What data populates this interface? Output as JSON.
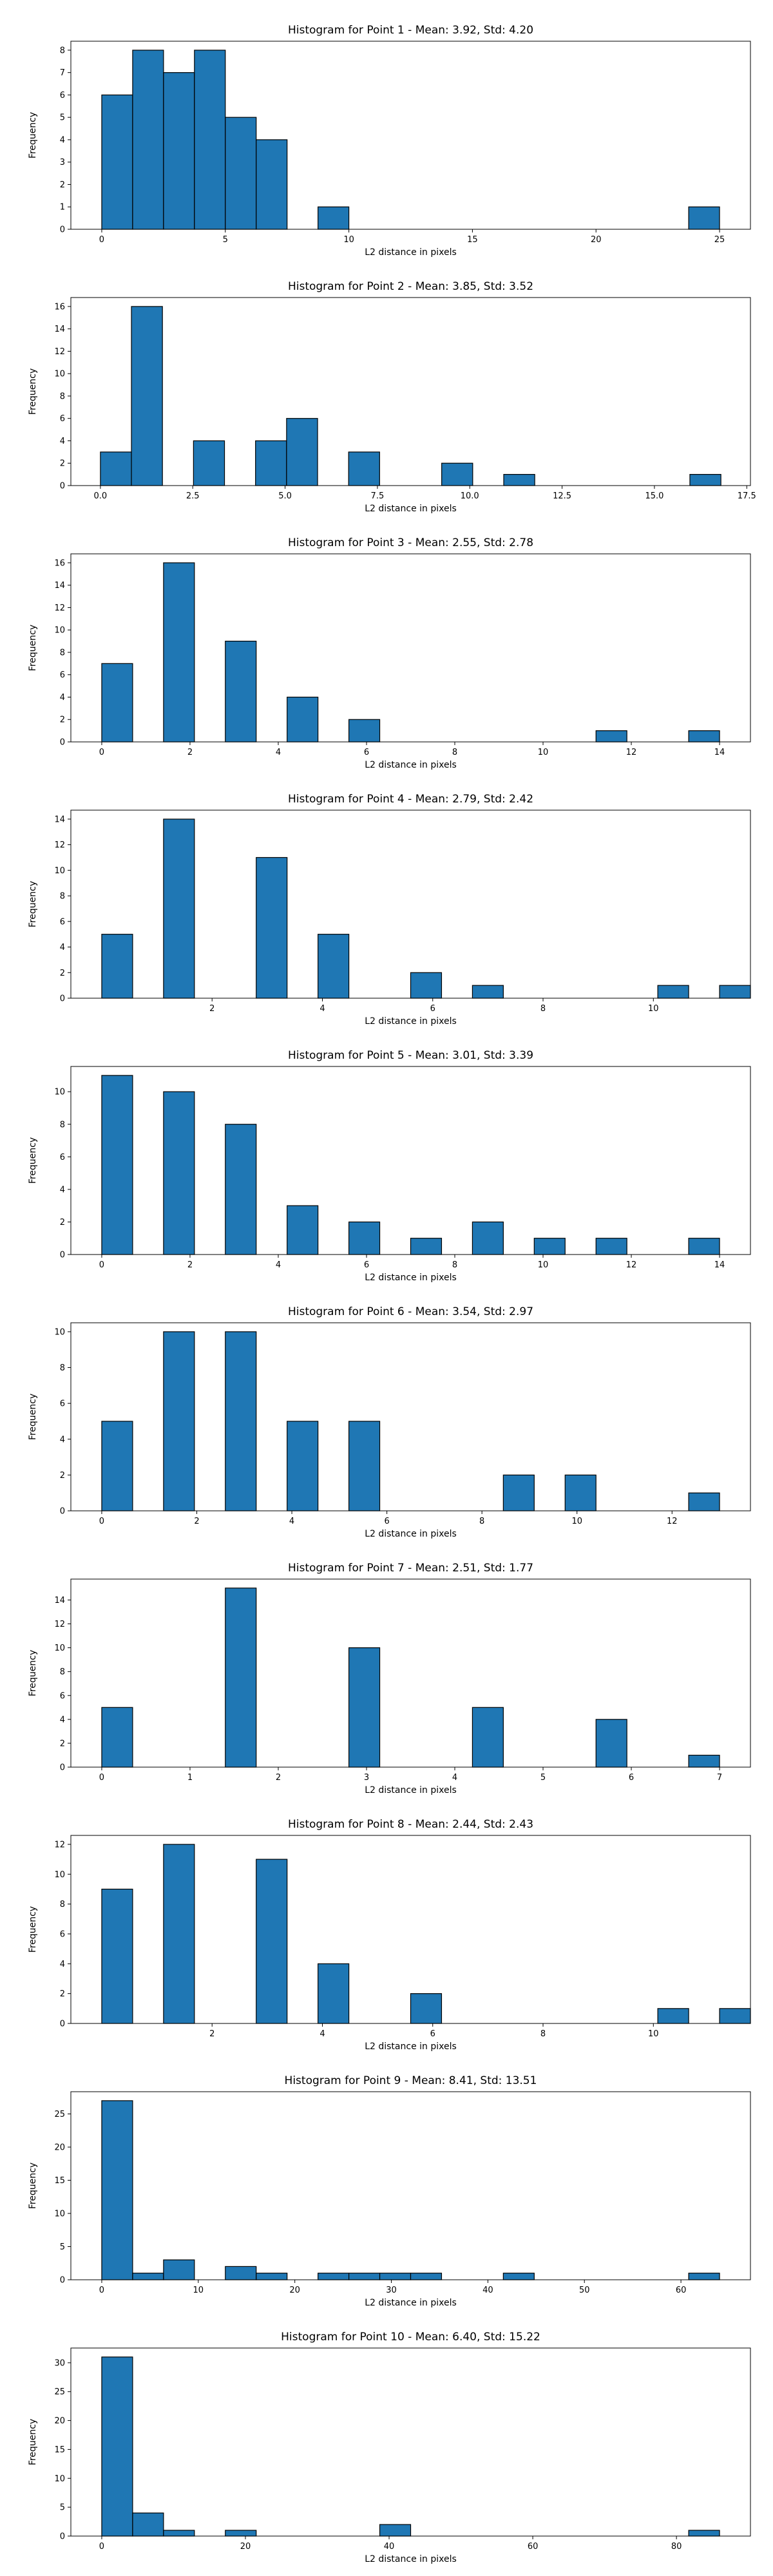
{
  "chart_data": [
    {
      "type": "bar",
      "title": "Histogram for Point 1 - Mean: 3.92, Std: 4.20",
      "xlabel": "L2 distance in pixels",
      "ylabel": "Frequency",
      "xlim": [
        -1.25,
        26.25
      ],
      "ylim": [
        0,
        8.4
      ],
      "xticks": [
        0,
        5,
        10,
        15,
        20,
        25
      ],
      "xtick_labels": [
        "0",
        "5",
        "10",
        "15",
        "20",
        "25"
      ],
      "yticks": [
        0,
        1,
        2,
        3,
        4,
        5,
        6,
        7,
        8
      ],
      "ytick_labels": [
        "0",
        "1",
        "2",
        "3",
        "4",
        "5",
        "6",
        "7",
        "8"
      ],
      "bin_width": 1.25,
      "bins": [
        {
          "x": 0.0,
          "count": 6
        },
        {
          "x": 1.25,
          "count": 8
        },
        {
          "x": 2.5,
          "count": 7
        },
        {
          "x": 3.75,
          "count": 8
        },
        {
          "x": 5.0,
          "count": 5
        },
        {
          "x": 6.25,
          "count": 4
        },
        {
          "x": 8.75,
          "count": 1
        },
        {
          "x": 23.75,
          "count": 1
        }
      ]
    },
    {
      "type": "bar",
      "title": "Histogram for Point 2 - Mean: 3.85, Std: 3.52",
      "xlabel": "L2 distance in pixels",
      "ylabel": "Frequency",
      "xlim": [
        -0.8,
        17.6
      ],
      "ylim": [
        0,
        16.8
      ],
      "xticks": [
        0,
        2.5,
        5,
        7.5,
        10,
        12.5,
        15,
        17.5
      ],
      "xtick_labels": [
        "0.0",
        "2.5",
        "5.0",
        "7.5",
        "10.0",
        "12.5",
        "15.0",
        "17.5"
      ],
      "yticks": [
        0,
        2,
        4,
        6,
        8,
        10,
        12,
        14,
        16
      ],
      "ytick_labels": [
        "0",
        "2",
        "4",
        "6",
        "8",
        "10",
        "12",
        "14",
        "16"
      ],
      "bin_width": 0.84,
      "bins": [
        {
          "x": 0.0,
          "count": 3
        },
        {
          "x": 0.84,
          "count": 16
        },
        {
          "x": 2.52,
          "count": 4
        },
        {
          "x": 4.2,
          "count": 4
        },
        {
          "x": 5.04,
          "count": 6
        },
        {
          "x": 6.72,
          "count": 3
        },
        {
          "x": 9.24,
          "count": 2
        },
        {
          "x": 10.92,
          "count": 1
        },
        {
          "x": 15.96,
          "count": 1
        }
      ]
    },
    {
      "type": "bar",
      "title": "Histogram for Point 3 - Mean: 2.55, Std: 2.78",
      "xlabel": "L2 distance in pixels",
      "ylabel": "Frequency",
      "xlim": [
        -0.7,
        14.7
      ],
      "ylim": [
        0,
        16.8
      ],
      "xticks": [
        0,
        2,
        4,
        6,
        8,
        10,
        12,
        14
      ],
      "xtick_labels": [
        "0",
        "2",
        "4",
        "6",
        "8",
        "10",
        "12",
        "14"
      ],
      "yticks": [
        0,
        2,
        4,
        6,
        8,
        10,
        12,
        14,
        16
      ],
      "ytick_labels": [
        "0",
        "2",
        "4",
        "6",
        "8",
        "10",
        "12",
        "14",
        "16"
      ],
      "bin_width": 0.7,
      "bins": [
        {
          "x": 0.0,
          "count": 7
        },
        {
          "x": 1.4,
          "count": 16
        },
        {
          "x": 2.8,
          "count": 9
        },
        {
          "x": 4.2,
          "count": 4
        },
        {
          "x": 5.6,
          "count": 2
        },
        {
          "x": 11.2,
          "count": 1
        },
        {
          "x": 13.3,
          "count": 1
        }
      ]
    },
    {
      "type": "bar",
      "title": "Histogram for Point 4 - Mean: 2.79, Std: 2.42",
      "xlabel": "L2 distance in pixels",
      "ylabel": "Frequency",
      "xlim": [
        -0.56,
        11.76
      ],
      "ylim": [
        0,
        14.7
      ],
      "xticks": [
        2,
        4,
        6,
        8,
        10
      ],
      "xtick_labels": [
        "2",
        "4",
        "6",
        "8",
        "10"
      ],
      "yticks": [
        0,
        2,
        4,
        6,
        8,
        10,
        12,
        14
      ],
      "ytick_labels": [
        "0",
        "2",
        "4",
        "6",
        "8",
        "10",
        "12",
        "14"
      ],
      "bin_width": 0.56,
      "bins": [
        {
          "x": 0.0,
          "count": 5
        },
        {
          "x": 1.12,
          "count": 14
        },
        {
          "x": 2.8,
          "count": 11
        },
        {
          "x": 3.92,
          "count": 5
        },
        {
          "x": 5.6,
          "count": 2
        },
        {
          "x": 6.72,
          "count": 1
        },
        {
          "x": 10.08,
          "count": 1
        },
        {
          "x": 11.2,
          "count": 1
        }
      ]
    },
    {
      "type": "bar",
      "title": "Histogram for Point 5 - Mean: 3.01, Std: 3.39",
      "xlabel": "L2 distance in pixels",
      "ylabel": "Frequency",
      "xlim": [
        -0.7,
        14.7
      ],
      "ylim": [
        0,
        11.55
      ],
      "xticks": [
        0,
        2,
        4,
        6,
        8,
        10,
        12,
        14
      ],
      "xtick_labels": [
        "0",
        "2",
        "4",
        "6",
        "8",
        "10",
        "12",
        "14"
      ],
      "yticks": [
        0,
        2,
        4,
        6,
        8,
        10
      ],
      "ytick_labels": [
        "0",
        "2",
        "4",
        "6",
        "8",
        "10"
      ],
      "bin_width": 0.7,
      "bins": [
        {
          "x": 0.0,
          "count": 11
        },
        {
          "x": 1.4,
          "count": 10
        },
        {
          "x": 2.8,
          "count": 8
        },
        {
          "x": 4.2,
          "count": 3
        },
        {
          "x": 5.6,
          "count": 2
        },
        {
          "x": 7.0,
          "count": 1
        },
        {
          "x": 8.4,
          "count": 2
        },
        {
          "x": 9.8,
          "count": 1
        },
        {
          "x": 11.2,
          "count": 1
        },
        {
          "x": 13.3,
          "count": 1
        }
      ]
    },
    {
      "type": "bar",
      "title": "Histogram for Point 6 - Mean: 3.54, Std: 2.97",
      "xlabel": "L2 distance in pixels",
      "ylabel": "Frequency",
      "xlim": [
        -0.65,
        13.65
      ],
      "ylim": [
        0,
        10.5
      ],
      "xticks": [
        0,
        2,
        4,
        6,
        8,
        10,
        12
      ],
      "xtick_labels": [
        "0",
        "2",
        "4",
        "6",
        "8",
        "10",
        "12"
      ],
      "yticks": [
        0,
        2,
        4,
        6,
        8,
        10
      ],
      "ytick_labels": [
        "0",
        "2",
        "4",
        "6",
        "8",
        "10"
      ],
      "bin_width": 0.65,
      "bins": [
        {
          "x": 0.0,
          "count": 5
        },
        {
          "x": 1.3,
          "count": 10
        },
        {
          "x": 2.6,
          "count": 10
        },
        {
          "x": 3.9,
          "count": 5
        },
        {
          "x": 5.2,
          "count": 5
        },
        {
          "x": 8.45,
          "count": 2
        },
        {
          "x": 9.75,
          "count": 2
        },
        {
          "x": 12.35,
          "count": 1
        }
      ]
    },
    {
      "type": "bar",
      "title": "Histogram for Point 7 - Mean: 2.51, Std: 1.77",
      "xlabel": "L2 distance in pixels",
      "ylabel": "Frequency",
      "xlim": [
        -0.35,
        7.35
      ],
      "ylim": [
        0,
        15.75
      ],
      "xticks": [
        0,
        1,
        2,
        3,
        4,
        5,
        6,
        7
      ],
      "xtick_labels": [
        "0",
        "1",
        "2",
        "3",
        "4",
        "5",
        "6",
        "7"
      ],
      "yticks": [
        0,
        2,
        4,
        6,
        8,
        10,
        12,
        14
      ],
      "ytick_labels": [
        "0",
        "2",
        "4",
        "6",
        "8",
        "10",
        "12",
        "14"
      ],
      "bin_width": 0.35,
      "bins": [
        {
          "x": 0.0,
          "count": 5
        },
        {
          "x": 1.4,
          "count": 15
        },
        {
          "x": 2.8,
          "count": 10
        },
        {
          "x": 4.2,
          "count": 5
        },
        {
          "x": 5.6,
          "count": 4
        },
        {
          "x": 6.65,
          "count": 1
        }
      ]
    },
    {
      "type": "bar",
      "title": "Histogram for Point 8 - Mean: 2.44, Std: 2.43",
      "xlabel": "L2 distance in pixels",
      "ylabel": "Frequency",
      "xlim": [
        -0.56,
        11.76
      ],
      "ylim": [
        0,
        12.6
      ],
      "xticks": [
        2,
        4,
        6,
        8,
        10
      ],
      "xtick_labels": [
        "2",
        "4",
        "6",
        "8",
        "10"
      ],
      "yticks": [
        0,
        2,
        4,
        6,
        8,
        10,
        12
      ],
      "ytick_labels": [
        "0",
        "2",
        "4",
        "6",
        "8",
        "10",
        "12"
      ],
      "bin_width": 0.56,
      "bins": [
        {
          "x": 0.0,
          "count": 9
        },
        {
          "x": 1.12,
          "count": 12
        },
        {
          "x": 2.8,
          "count": 11
        },
        {
          "x": 3.92,
          "count": 4
        },
        {
          "x": 5.6,
          "count": 2
        },
        {
          "x": 10.08,
          "count": 1
        },
        {
          "x": 11.2,
          "count": 1
        }
      ]
    },
    {
      "type": "bar",
      "title": "Histogram for Point 9 - Mean: 8.41, Std: 13.51",
      "xlabel": "L2 distance in pixels",
      "ylabel": "Frequency",
      "xlim": [
        -3.2,
        67.2
      ],
      "ylim": [
        0,
        28.35
      ],
      "xticks": [
        0,
        10,
        20,
        30,
        40,
        50,
        60
      ],
      "xtick_labels": [
        "0",
        "10",
        "20",
        "30",
        "40",
        "50",
        "60"
      ],
      "yticks": [
        0,
        5,
        10,
        15,
        20,
        25
      ],
      "ytick_labels": [
        "0",
        "5",
        "10",
        "15",
        "20",
        "25"
      ],
      "bin_width": 3.2,
      "bins": [
        {
          "x": 0.0,
          "count": 27
        },
        {
          "x": 3.2,
          "count": 1
        },
        {
          "x": 6.4,
          "count": 3
        },
        {
          "x": 12.8,
          "count": 2
        },
        {
          "x": 16.0,
          "count": 1
        },
        {
          "x": 22.4,
          "count": 1
        },
        {
          "x": 25.6,
          "count": 1
        },
        {
          "x": 28.8,
          "count": 1
        },
        {
          "x": 32.0,
          "count": 1
        },
        {
          "x": 41.6,
          "count": 1
        },
        {
          "x": 60.8,
          "count": 1
        }
      ]
    },
    {
      "type": "bar",
      "title": "Histogram for Point 10 - Mean: 6.40, Std: 15.22",
      "xlabel": "L2 distance in pixels",
      "ylabel": "Frequency",
      "xlim": [
        -4.3,
        90.3
      ],
      "ylim": [
        0,
        32.55
      ],
      "xticks": [
        0,
        20,
        40,
        60,
        80
      ],
      "xtick_labels": [
        "0",
        "20",
        "40",
        "60",
        "80"
      ],
      "yticks": [
        0,
        5,
        10,
        15,
        20,
        25,
        30
      ],
      "ytick_labels": [
        "0",
        "5",
        "10",
        "15",
        "20",
        "25",
        "30"
      ],
      "bin_width": 4.3,
      "bins": [
        {
          "x": 0.0,
          "count": 31
        },
        {
          "x": 4.3,
          "count": 4
        },
        {
          "x": 8.6,
          "count": 1
        },
        {
          "x": 17.2,
          "count": 1
        },
        {
          "x": 38.7,
          "count": 2
        },
        {
          "x": 81.7,
          "count": 1
        }
      ]
    }
  ]
}
